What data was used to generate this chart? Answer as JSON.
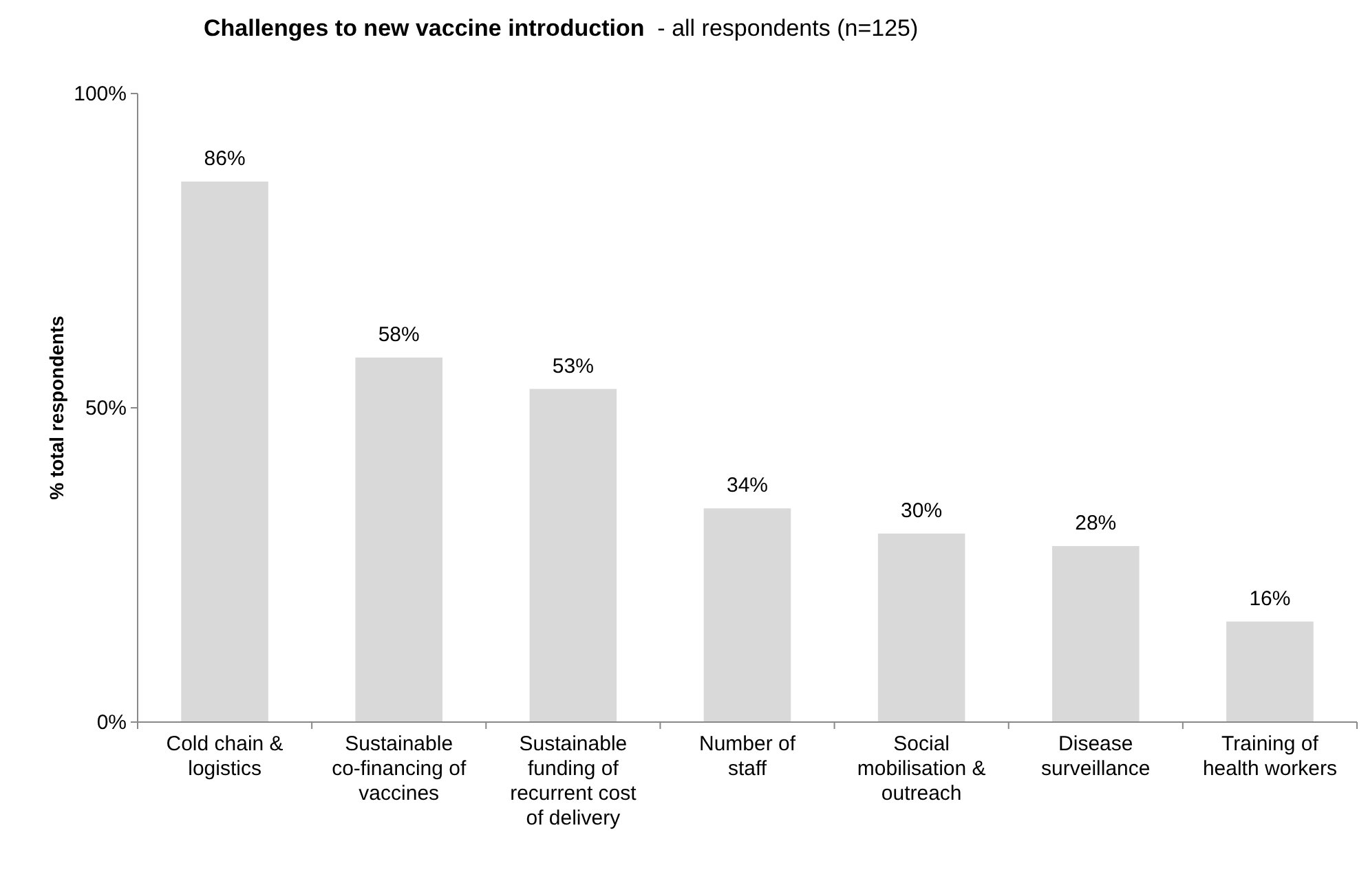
{
  "chart_data": {
    "type": "bar",
    "title": "Challenges to new vaccine introduction",
    "subtitle": "- all respondents (n=125)",
    "ylabel": "% total respondents",
    "categories": [
      "Cold chain & logistics",
      "Sustainable co-financing of vaccines",
      "Sustainable funding of recurrent cost of delivery",
      "Number of staff",
      "Social mobilisation & outreach",
      "Disease surveillance",
      "Training of health workers"
    ],
    "values": [
      86,
      58,
      53,
      34,
      30,
      28,
      16
    ],
    "value_labels": [
      "86%",
      "58%",
      "53%",
      "34%",
      "30%",
      "28%",
      "16%"
    ],
    "color": "#d9d9d9",
    "ylim": [
      0,
      100
    ],
    "yticks": [
      {
        "value": 0,
        "label": "0%"
      },
      {
        "value": 50,
        "label": "50%"
      },
      {
        "value": 100,
        "label": "100%"
      }
    ],
    "grid": false
  }
}
